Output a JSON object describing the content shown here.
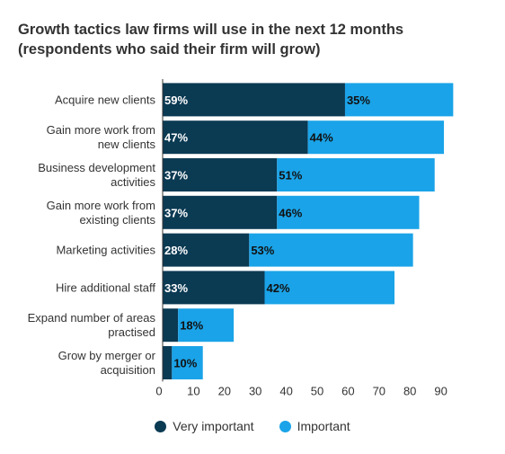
{
  "colors": {
    "very_important": "#0b3a53",
    "important": "#1aa3e8"
  },
  "chart_data": {
    "type": "bar",
    "orientation": "horizontal",
    "stacked": true,
    "title": "Growth tactics law firms will use in the next 12 months",
    "subtitle": "(respondents who said their firm will grow)",
    "categories": [
      "Acquire new clients",
      "Gain more work from new clients",
      "Business development activities",
      "Gain more work from existing clients",
      "Marketing activities",
      "Hire additional staff",
      "Expand number of areas practised",
      "Grow by merger or acquisition"
    ],
    "series": [
      {
        "name": "Very important",
        "values": [
          59,
          47,
          37,
          37,
          28,
          33,
          5,
          3
        ],
        "labels": [
          "59%",
          "47%",
          "37%",
          "37%",
          "28%",
          "33%",
          "",
          ""
        ]
      },
      {
        "name": "Important",
        "values": [
          35,
          44,
          51,
          46,
          53,
          42,
          18,
          10
        ],
        "labels": [
          "35%",
          "44%",
          "51%",
          "46%",
          "53%",
          "42%",
          "18%",
          "10%"
        ]
      }
    ],
    "xlim": [
      0,
      98
    ],
    "xticks": [
      "0",
      "10",
      "20",
      "30",
      "40",
      "50",
      "60",
      "70",
      "80",
      "90"
    ],
    "xtick_values": [
      0,
      10,
      20,
      30,
      40,
      50,
      60,
      70,
      80,
      90
    ],
    "grid": false,
    "legend": "bottom-center"
  }
}
